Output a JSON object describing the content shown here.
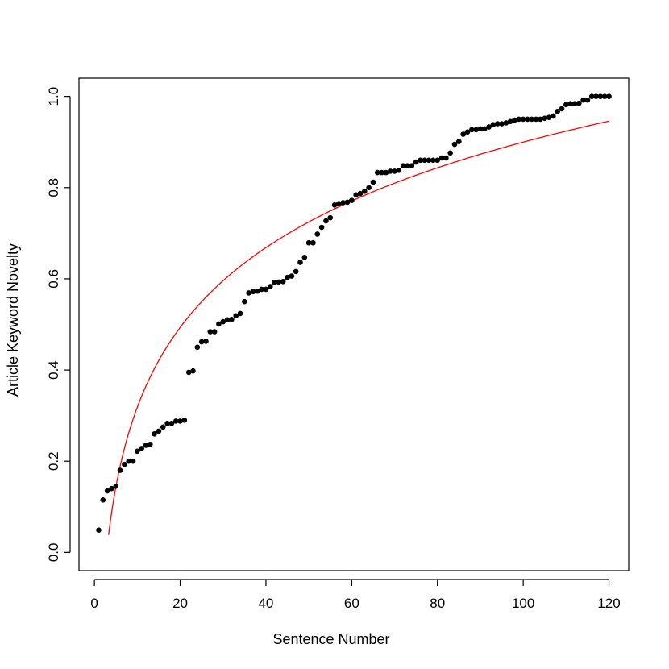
{
  "chart_data": {
    "type": "scatter",
    "title": "",
    "xlabel": "Sentence Number",
    "ylabel": "Article Keyword Novelty",
    "xlim": [
      -3.6,
      124.6
    ],
    "ylim": [
      -0.04,
      1.04
    ],
    "xticks": [
      0,
      20,
      40,
      60,
      80,
      100,
      120
    ],
    "yticks": [
      0.0,
      0.2,
      0.4,
      0.6,
      0.8,
      1.0
    ],
    "xtick_labels": [
      "0",
      "20",
      "40",
      "60",
      "80",
      "100",
      "120"
    ],
    "ytick_labels": [
      "0.0",
      "0.2",
      "0.4",
      "0.6",
      "0.8",
      "1.0"
    ],
    "grid": false,
    "legend": "none",
    "colors": {
      "points": "#000000",
      "fit_line": "#ff0000"
    },
    "series": [
      {
        "type": "scatter",
        "x": [
          1,
          2,
          3,
          4,
          5,
          6,
          7,
          8,
          9,
          10,
          11,
          12,
          13,
          14,
          15,
          16,
          17,
          18,
          19,
          20,
          21,
          22,
          23,
          24,
          25,
          26,
          27,
          28,
          29,
          30,
          31,
          32,
          33,
          34,
          35,
          36,
          37,
          38,
          39,
          40,
          41,
          42,
          43,
          44,
          45,
          46,
          47,
          48,
          49,
          50,
          51,
          52,
          53,
          54,
          55,
          56,
          57,
          58,
          59,
          60,
          61,
          62,
          63,
          64,
          65,
          66,
          67,
          68,
          69,
          70,
          71,
          72,
          73,
          74,
          75,
          76,
          77,
          78,
          79,
          80,
          81,
          82,
          83,
          84,
          85,
          86,
          87,
          88,
          89,
          90,
          91,
          92,
          93,
          94,
          95,
          96,
          97,
          98,
          99,
          100,
          101,
          102,
          103,
          104,
          105,
          106,
          107,
          108,
          109,
          110,
          111,
          112,
          113,
          114,
          115,
          116,
          117,
          118,
          119,
          120
        ],
        "y": [
          0.049,
          0.115,
          0.135,
          0.14,
          0.145,
          0.18,
          0.193,
          0.2,
          0.2,
          0.222,
          0.228,
          0.235,
          0.237,
          0.26,
          0.266,
          0.275,
          0.283,
          0.283,
          0.288,
          0.288,
          0.29,
          0.395,
          0.398,
          0.45,
          0.462,
          0.463,
          0.484,
          0.484,
          0.501,
          0.506,
          0.51,
          0.511,
          0.519,
          0.524,
          0.55,
          0.569,
          0.572,
          0.573,
          0.577,
          0.577,
          0.583,
          0.592,
          0.593,
          0.594,
          0.603,
          0.606,
          0.616,
          0.636,
          0.647,
          0.679,
          0.679,
          0.698,
          0.713,
          0.727,
          0.734,
          0.762,
          0.765,
          0.767,
          0.768,
          0.772,
          0.784,
          0.787,
          0.792,
          0.8,
          0.812,
          0.833,
          0.833,
          0.833,
          0.836,
          0.836,
          0.838,
          0.848,
          0.848,
          0.848,
          0.856,
          0.86,
          0.86,
          0.86,
          0.86,
          0.86,
          0.865,
          0.865,
          0.876,
          0.895,
          0.901,
          0.917,
          0.922,
          0.927,
          0.927,
          0.929,
          0.929,
          0.933,
          0.938,
          0.94,
          0.94,
          0.942,
          0.945,
          0.948,
          0.95,
          0.95,
          0.95,
          0.95,
          0.95,
          0.95,
          0.952,
          0.954,
          0.957,
          0.967,
          0.973,
          0.982,
          0.984,
          0.984,
          0.985,
          0.992,
          0.992,
          1.0,
          1.0,
          1.0,
          1.0,
          1.0
        ]
      },
      {
        "type": "line",
        "fit": {
          "form": "a + b*ln(x)",
          "a": -0.263,
          "b": 0.2525
        },
        "x_range": [
          3.3,
          120
        ]
      }
    ]
  }
}
